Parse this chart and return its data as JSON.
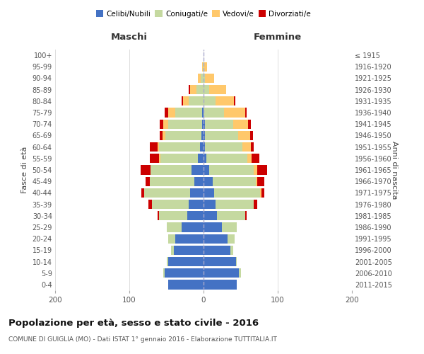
{
  "age_groups": [
    "0-4",
    "5-9",
    "10-14",
    "15-19",
    "20-24",
    "25-29",
    "30-34",
    "35-39",
    "40-44",
    "45-49",
    "50-54",
    "55-59",
    "60-64",
    "65-69",
    "70-74",
    "75-79",
    "80-84",
    "85-89",
    "90-94",
    "95-99",
    "100+"
  ],
  "birth_years": [
    "2011-2015",
    "2006-2010",
    "2001-2005",
    "1996-2000",
    "1991-1995",
    "1986-1990",
    "1981-1985",
    "1976-1980",
    "1971-1975",
    "1966-1970",
    "1961-1965",
    "1956-1960",
    "1951-1955",
    "1946-1950",
    "1941-1945",
    "1936-1940",
    "1931-1935",
    "1926-1930",
    "1921-1925",
    "1916-1920",
    "≤ 1915"
  ],
  "male_celibi": [
    48,
    52,
    48,
    40,
    38,
    30,
    22,
    20,
    18,
    12,
    16,
    8,
    5,
    3,
    2,
    2,
    0,
    0,
    0,
    0,
    0
  ],
  "male_coniugati": [
    0,
    2,
    2,
    4,
    10,
    20,
    38,
    50,
    62,
    60,
    55,
    50,
    55,
    48,
    46,
    36,
    20,
    10,
    4,
    1,
    0
  ],
  "male_vedovi": [
    0,
    0,
    0,
    0,
    0,
    0,
    0,
    0,
    0,
    0,
    0,
    2,
    2,
    4,
    6,
    10,
    8,
    8,
    4,
    1,
    0
  ],
  "male_divorziati": [
    0,
    0,
    0,
    0,
    0,
    0,
    2,
    4,
    4,
    6,
    14,
    12,
    10,
    4,
    5,
    4,
    2,
    2,
    0,
    0,
    0
  ],
  "female_nubili": [
    45,
    48,
    44,
    36,
    32,
    25,
    18,
    16,
    14,
    12,
    8,
    4,
    2,
    2,
    2,
    0,
    0,
    0,
    0,
    0,
    0
  ],
  "female_coniugate": [
    0,
    2,
    1,
    4,
    10,
    20,
    38,
    52,
    62,
    58,
    60,
    55,
    50,
    45,
    38,
    28,
    16,
    8,
    2,
    0,
    0
  ],
  "female_vedove": [
    0,
    0,
    0,
    0,
    0,
    0,
    0,
    0,
    2,
    2,
    4,
    6,
    12,
    16,
    20,
    28,
    25,
    22,
    12,
    5,
    0
  ],
  "female_divorziate": [
    0,
    0,
    0,
    0,
    0,
    0,
    2,
    4,
    4,
    10,
    14,
    10,
    4,
    4,
    4,
    2,
    2,
    0,
    0,
    0,
    0
  ],
  "colors": {
    "celibi_nubili": "#4472c4",
    "coniugati": "#c5d9a0",
    "vedovi": "#ffc86b",
    "divorziati": "#cc0000"
  },
  "title": "Popolazione per età, sesso e stato civile - 2016",
  "subtitle": "COMUNE DI GUIGLIA (MO) - Dati ISTAT 1° gennaio 2016 - Elaborazione TUTTITALIA.IT",
  "xlabel_left": "Maschi",
  "xlabel_right": "Femmine",
  "ylabel_left": "Fasce di età",
  "ylabel_right": "Anni di nascita",
  "xlim": 200,
  "background_color": "#ffffff",
  "grid_color": "#dddddd"
}
